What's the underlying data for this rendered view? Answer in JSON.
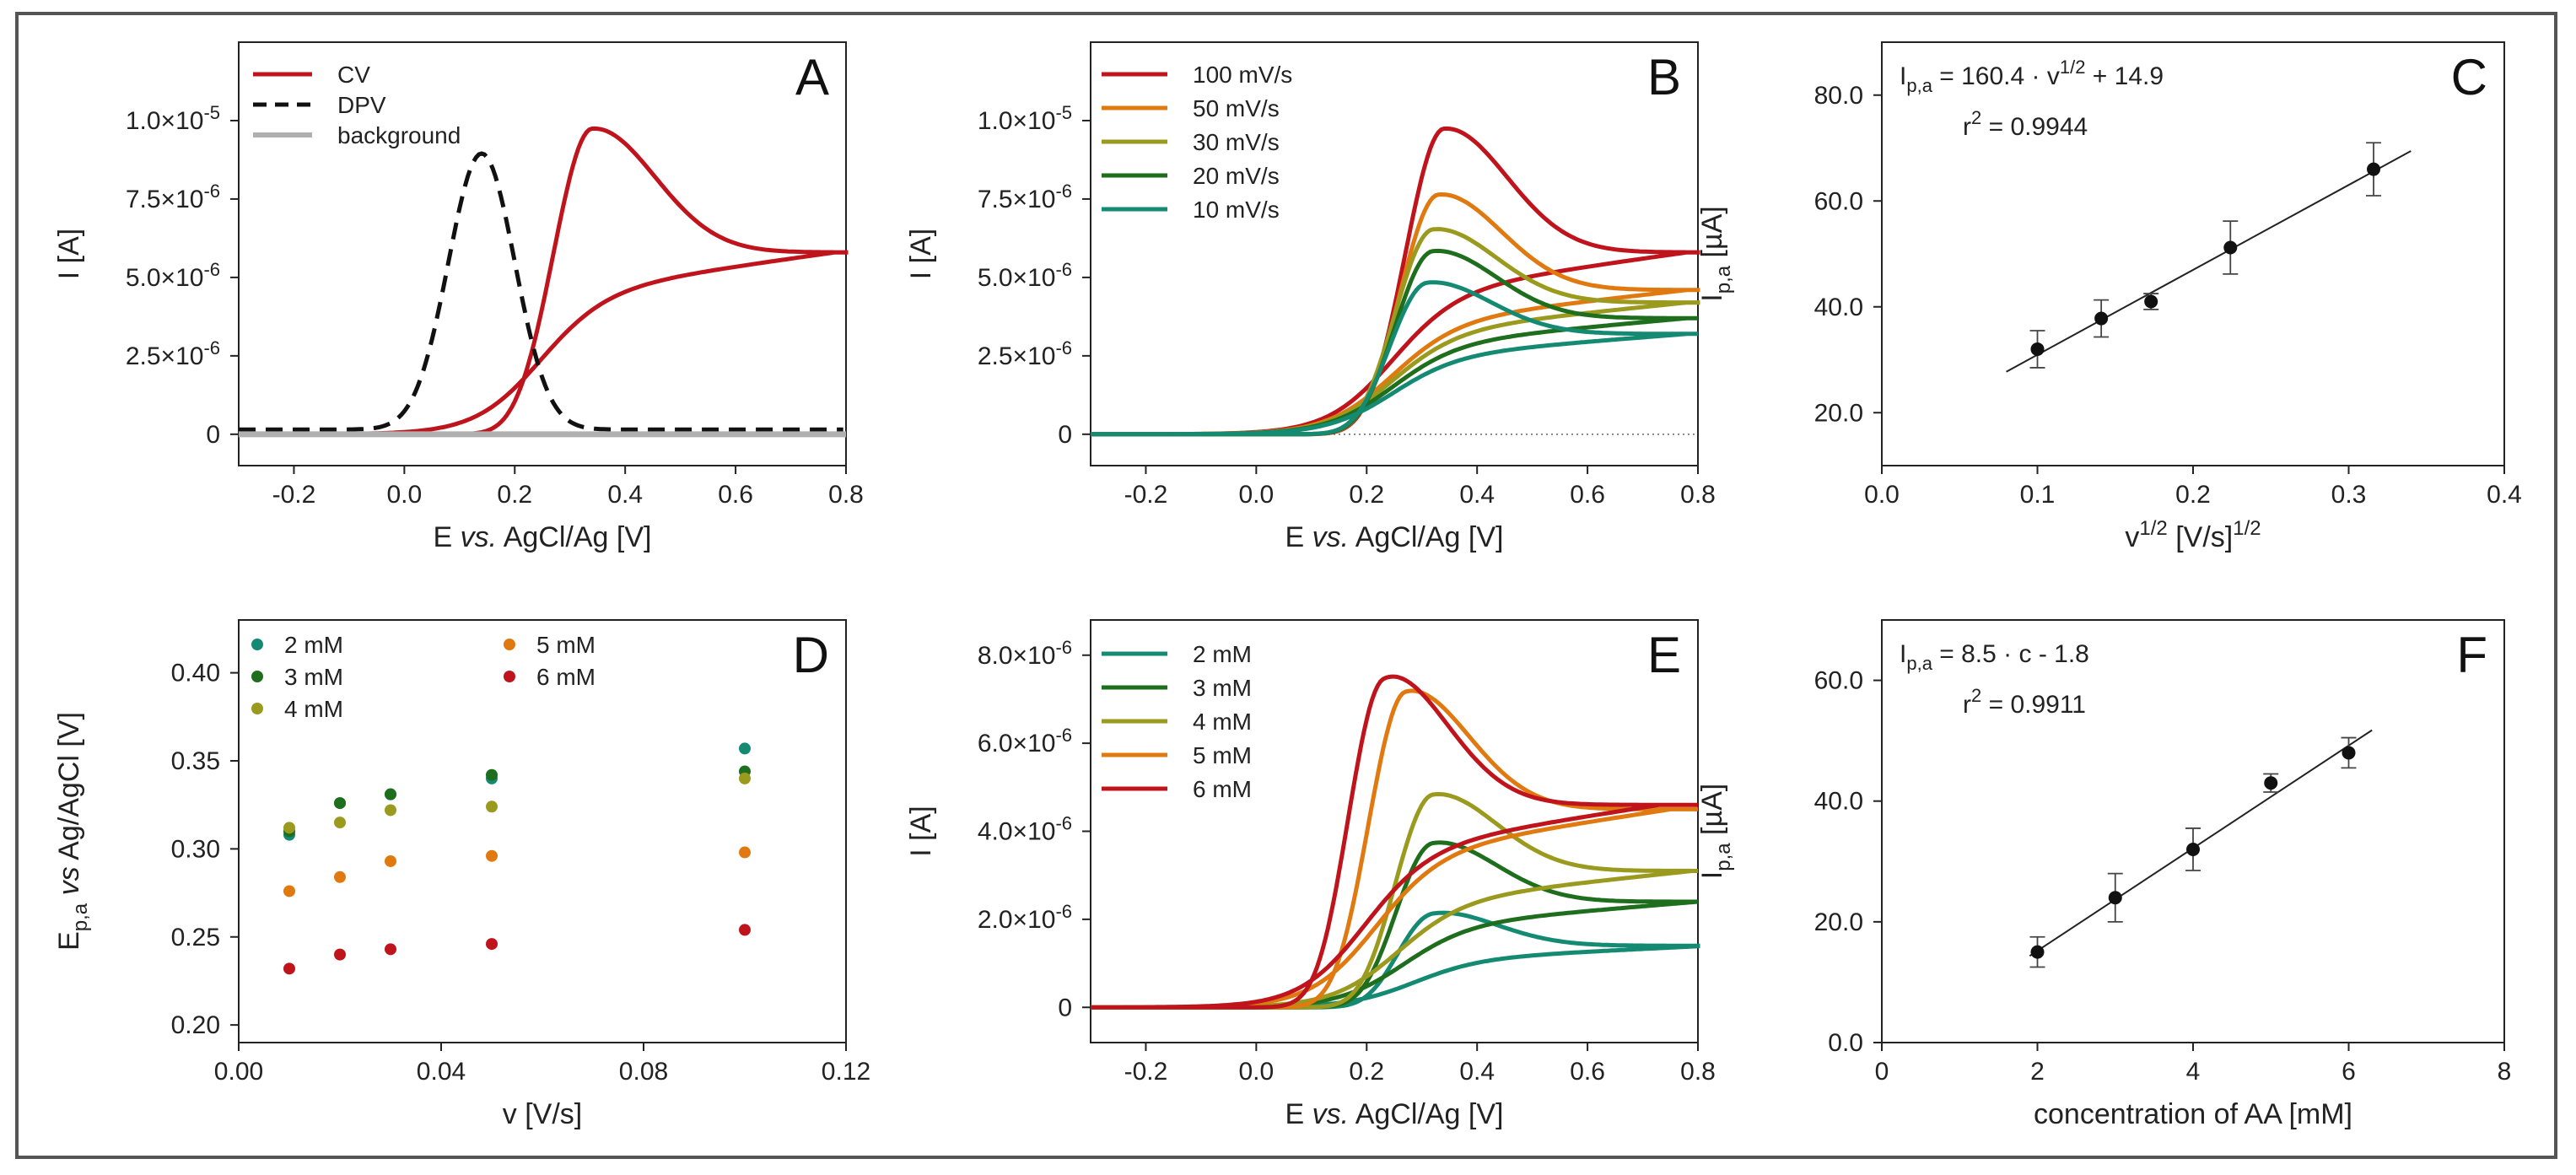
{
  "chart_data": [
    {
      "id": "A",
      "type": "line",
      "panel_label": "A",
      "xlabel_parts": [
        "E ",
        "vs.",
        " AgCl/Ag [V]"
      ],
      "ylabel": "I [A]",
      "xlim": [
        -0.3,
        0.8
      ],
      "ylim": [
        -1e-06,
        1.25e-05
      ],
      "xticks": [
        -0.2,
        0,
        0.2,
        0.4,
        0.6,
        0.8
      ],
      "xtick_labels": [
        "-0.2",
        "0.0",
        "0.2",
        "0.4",
        "0.6",
        "0.8"
      ],
      "yticks": [
        0,
        2.5e-06,
        5e-06,
        7.5e-06,
        1e-05
      ],
      "ytick_labels": [
        {
          "m": "0",
          "e": ""
        },
        {
          "m": "2.5×10",
          "e": "-6"
        },
        {
          "m": "5.0×10",
          "e": "-6"
        },
        {
          "m": "7.5×10",
          "e": "-6"
        },
        {
          "m": "1.0×10",
          "e": "-5"
        }
      ],
      "legend": [
        {
          "label": "CV",
          "color": "#c0141c",
          "style": "solid"
        },
        {
          "label": "DPV",
          "color": "#111111",
          "style": "dashed"
        },
        {
          "label": "background",
          "color": "#b0b0b0",
          "style": "solid"
        }
      ],
      "series": [
        {
          "name": "CV",
          "kind": "cv",
          "color": "#c0141c",
          "peak_E": 0.34,
          "peak_I": 9.8e-06,
          "end_I": 5.8e-06,
          "onset": 0.08
        },
        {
          "name": "DPV",
          "kind": "dpv",
          "color": "#111111",
          "peak_E": 0.14,
          "peak_I": 8.8e-06,
          "width": 0.085
        },
        {
          "name": "background",
          "kind": "flat",
          "color": "#b0b0b0"
        }
      ]
    },
    {
      "id": "B",
      "type": "line",
      "panel_label": "B",
      "xlabel_parts": [
        "E ",
        "vs.",
        " AgCl/Ag [V]"
      ],
      "ylabel": "I [A]",
      "xlim": [
        -0.3,
        0.8
      ],
      "ylim": [
        -1e-06,
        1.25e-05
      ],
      "zero_line": true,
      "xticks": [
        -0.2,
        0,
        0.2,
        0.4,
        0.6,
        0.8
      ],
      "xtick_labels": [
        "-0.2",
        "0.0",
        "0.2",
        "0.4",
        "0.6",
        "0.8"
      ],
      "yticks": [
        0,
        2.5e-06,
        5e-06,
        7.5e-06,
        1e-05
      ],
      "ytick_labels": [
        {
          "m": "0",
          "e": ""
        },
        {
          "m": "2.5×10",
          "e": "-6"
        },
        {
          "m": "5.0×10",
          "e": "-6"
        },
        {
          "m": "7.5×10",
          "e": "-6"
        },
        {
          "m": "1.0×10",
          "e": "-5"
        }
      ],
      "legend": [
        {
          "label": "100 mV/s",
          "color": "#c0141c"
        },
        {
          "label": "50 mV/s",
          "color": "#e07a10"
        },
        {
          "label": "30 mV/s",
          "color": "#9a9a1e"
        },
        {
          "label": "20 mV/s",
          "color": "#1e6e1e"
        },
        {
          "label": "10 mV/s",
          "color": "#158a72"
        }
      ],
      "series": [
        {
          "name": "100 mV/s",
          "kind": "cv",
          "color": "#c0141c",
          "peak_E": 0.34,
          "peak_I": 9.8e-06,
          "end_I": 5.8e-06,
          "onset": 0.08
        },
        {
          "name": "50 mV/s",
          "kind": "cv",
          "color": "#e07a10",
          "peak_E": 0.33,
          "peak_I": 7.7e-06,
          "end_I": 4.6e-06,
          "onset": 0.08
        },
        {
          "name": "30 mV/s",
          "kind": "cv",
          "color": "#9a9a1e",
          "peak_E": 0.32,
          "peak_I": 6.6e-06,
          "end_I": 4.2e-06,
          "onset": 0.08
        },
        {
          "name": "20 mV/s",
          "kind": "cv",
          "color": "#1e6e1e",
          "peak_E": 0.32,
          "peak_I": 5.9e-06,
          "end_I": 3.7e-06,
          "onset": 0.08
        },
        {
          "name": "10 mV/s",
          "kind": "cv",
          "color": "#158a72",
          "peak_E": 0.31,
          "peak_I": 4.9e-06,
          "end_I": 3.2e-06,
          "onset": 0.08
        }
      ]
    },
    {
      "id": "C",
      "type": "scatter",
      "panel_label": "C",
      "xlabel_parts": [
        "v",
        "1/2",
        " [V/s]",
        "1/2"
      ],
      "ylabel_parts": [
        "I",
        "p,a",
        " [µA]"
      ],
      "xlim": [
        0,
        0.4
      ],
      "ylim": [
        10,
        90
      ],
      "xticks": [
        0,
        0.1,
        0.2,
        0.3,
        0.4
      ],
      "xtick_labels": [
        "0.0",
        "0.1",
        "0.2",
        "0.3",
        "0.4"
      ],
      "yticks": [
        20,
        40,
        60,
        80
      ],
      "ytick_labels": [
        "20.0",
        "40.0",
        "60.0",
        "80.0"
      ],
      "equation": {
        "prefix": "I",
        "sub": "p,a",
        "mid": " = 160.4 · v",
        "sup": "1/2",
        "tail": " + 14.9"
      },
      "r2": {
        "r": "r",
        "sup": "2",
        "tail": " = 0.9944"
      },
      "fit": {
        "slope": 160.4,
        "intercept": 14.9,
        "x_range": [
          0.08,
          0.34
        ]
      },
      "x": [
        0.1,
        0.141,
        0.173,
        0.224,
        0.316
      ],
      "y": [
        32,
        37.8,
        41,
        51.2,
        66
      ],
      "yerr": [
        3.5,
        3.5,
        1.5,
        5,
        5
      ]
    },
    {
      "id": "D",
      "type": "scatter",
      "panel_label": "D",
      "xlabel": "v [V/s]",
      "ylabel_parts": [
        "E",
        "p,a",
        " vs",
        " Ag/AgCl [V]"
      ],
      "xlim": [
        0,
        0.12
      ],
      "ylim": [
        0.19,
        0.43
      ],
      "xticks": [
        0,
        0.04,
        0.08,
        0.12
      ],
      "xtick_labels": [
        "0.00",
        "0.04",
        "0.08",
        "0.12"
      ],
      "yticks": [
        0.2,
        0.25,
        0.3,
        0.35,
        0.4
      ],
      "ytick_labels": [
        "0.20",
        "0.25",
        "0.30",
        "0.35",
        "0.40"
      ],
      "legend": [
        {
          "label": "2 mM",
          "color": "#158a72"
        },
        {
          "label": "3 mM",
          "color": "#1e6e1e"
        },
        {
          "label": "4 mM",
          "color": "#9a9a1e"
        },
        {
          "label": "5 mM",
          "color": "#e07a10"
        },
        {
          "label": "6 mM",
          "color": "#c0141c"
        }
      ],
      "x": [
        0.01,
        0.02,
        0.03,
        0.05,
        0.1
      ],
      "series": [
        {
          "name": "2 mM",
          "color": "#158a72",
          "values": [
            0.308,
            0.326,
            0.331,
            0.34,
            0.357
          ]
        },
        {
          "name": "3 mM",
          "color": "#1e6e1e",
          "values": [
            0.31,
            0.326,
            0.331,
            0.342,
            0.344
          ]
        },
        {
          "name": "4 mM",
          "color": "#9a9a1e",
          "values": [
            0.312,
            0.315,
            0.322,
            0.324,
            0.34
          ]
        },
        {
          "name": "5 mM",
          "color": "#e07a10",
          "values": [
            0.276,
            0.284,
            0.293,
            0.296,
            0.298
          ]
        },
        {
          "name": "6 mM",
          "color": "#c0141c",
          "values": [
            0.232,
            0.24,
            0.243,
            0.246,
            0.254
          ]
        }
      ]
    },
    {
      "id": "E",
      "type": "line",
      "panel_label": "E",
      "xlabel_parts": [
        "E ",
        "vs.",
        " AgCl/Ag [V]"
      ],
      "ylabel": "I [A]",
      "xlim": [
        -0.3,
        0.8
      ],
      "ylim": [
        -8e-07,
        8.8e-06
      ],
      "xticks": [
        -0.2,
        0,
        0.2,
        0.4,
        0.6,
        0.8
      ],
      "xtick_labels": [
        "-0.2",
        "0.0",
        "0.2",
        "0.4",
        "0.6",
        "0.8"
      ],
      "yticks": [
        0,
        2e-06,
        4e-06,
        6e-06,
        8e-06
      ],
      "ytick_labels": [
        {
          "m": "0",
          "e": ""
        },
        {
          "m": "2.0×10",
          "e": "-6"
        },
        {
          "m": "4.0×10",
          "e": "-6"
        },
        {
          "m": "6.0×10",
          "e": "-6"
        },
        {
          "m": "8.0×10",
          "e": "-6"
        }
      ],
      "legend": [
        {
          "label": "2 mM",
          "color": "#158a72"
        },
        {
          "label": "3 mM",
          "color": "#1e6e1e"
        },
        {
          "label": "4 mM",
          "color": "#9a9a1e"
        },
        {
          "label": "5 mM",
          "color": "#e07a10"
        },
        {
          "label": "6 mM",
          "color": "#c0141c"
        }
      ],
      "series": [
        {
          "name": "2 mM",
          "kind": "cv",
          "color": "#158a72",
          "peak_E": 0.32,
          "peak_I": 2.2e-06,
          "end_I": 1.4e-06,
          "onset": 0.12
        },
        {
          "name": "3 mM",
          "kind": "cv",
          "color": "#1e6e1e",
          "peak_E": 0.32,
          "peak_I": 3.8e-06,
          "end_I": 2.4e-06,
          "onset": 0.1
        },
        {
          "name": "4 mM",
          "kind": "cv",
          "color": "#9a9a1e",
          "peak_E": 0.32,
          "peak_I": 4.9e-06,
          "end_I": 3.1e-06,
          "onset": 0.09
        },
        {
          "name": "5 mM",
          "kind": "cv",
          "color": "#e07a10",
          "peak_E": 0.27,
          "peak_I": 7.3e-06,
          "end_I": 4.5e-06,
          "onset": 0.05
        },
        {
          "name": "6 mM",
          "kind": "cv",
          "color": "#c0141c",
          "peak_E": 0.23,
          "peak_I": 7.7e-06,
          "end_I": 4.6e-06,
          "onset": 0.03
        }
      ]
    },
    {
      "id": "F",
      "type": "scatter",
      "panel_label": "F",
      "xlabel": "concentration of AA [mM]",
      "ylabel_parts": [
        "I",
        "p,a",
        " [µA]"
      ],
      "xlim": [
        0,
        8
      ],
      "ylim": [
        0,
        70
      ],
      "xticks": [
        0,
        2,
        4,
        6,
        8
      ],
      "xtick_labels": [
        "0",
        "2",
        "4",
        "6",
        "8"
      ],
      "yticks": [
        0,
        20,
        40,
        60
      ],
      "ytick_labels": [
        "0.0",
        "20.0",
        "40.0",
        "60.0"
      ],
      "equation": {
        "prefix": "I",
        "sub": "p,a",
        "mid": " = 8.5 · c - 1.8",
        "sup": "",
        "tail": ""
      },
      "r2": {
        "r": "r",
        "sup": "2",
        "tail": " = 0.9911"
      },
      "fit": {
        "slope": 8.5,
        "intercept": -1.8,
        "x_range": [
          1.9,
          6.3
        ]
      },
      "x": [
        2,
        3,
        4,
        5,
        6
      ],
      "y": [
        15,
        24,
        32,
        43,
        48
      ],
      "yerr": [
        2.5,
        4,
        3.5,
        1.5,
        2.5
      ]
    }
  ]
}
